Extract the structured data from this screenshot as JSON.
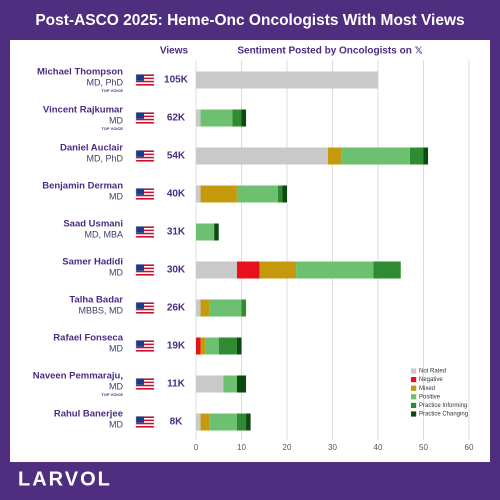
{
  "chart_data": {
    "type": "stacked-bar-horizontal",
    "title": "Post-ASCO 2025: Heme-Onc Oncologists With Most Views",
    "x_axis_title": "Sentiment Posted by Oncologists on 𝕏",
    "brand": "LARVOL",
    "categories": [
      "Michael Thompson",
      "Vincent Rajkumar",
      "Daniel Auclair",
      "Benjamin Derman",
      "Saad Usmani",
      "Samer Hadidi",
      "Talha Badar",
      "Rafael Fonseca",
      "Naveen Pemmaraju,",
      "Rahul Banerjee"
    ],
    "credentials": [
      "MD, PhD",
      "MD",
      "MD, PhD",
      "MD",
      "MD, MBA",
      "MD",
      "MBBS, MD",
      "MD",
      "MD",
      "MD"
    ],
    "badges": [
      "TOP VOICE",
      "TOP VOICE",
      null,
      null,
      null,
      null,
      null,
      null,
      "TOP VOICE",
      null
    ],
    "views": {
      "title": "Views",
      "values": [
        105000,
        62000,
        54000,
        40000,
        31000,
        30000,
        26000,
        19000,
        11000,
        8000
      ],
      "value_labels": [
        "105K",
        "62K",
        "54K",
        "40K",
        "31K",
        "30K",
        "26K",
        "19K",
        "11K",
        "8K"
      ]
    },
    "series": [
      {
        "name": "Not Rated",
        "color": "#c9c9c9",
        "values": [
          40,
          1,
          29,
          1,
          0,
          9,
          1,
          0,
          6,
          1
        ]
      },
      {
        "name": "Negative",
        "color": "#e8101a",
        "values": [
          0,
          0,
          0,
          0,
          0,
          5,
          0,
          1,
          0,
          0
        ]
      },
      {
        "name": "Mixed",
        "color": "#c49a0c",
        "values": [
          0,
          0,
          3,
          8,
          0,
          8,
          2,
          1,
          0,
          2
        ]
      },
      {
        "name": "Positive",
        "color": "#6cc070",
        "values": [
          0,
          7,
          15,
          9,
          4,
          17,
          7,
          3,
          3,
          6
        ]
      },
      {
        "name": "Practice Informing",
        "color": "#2e8b32",
        "values": [
          0,
          2,
          3,
          1,
          0,
          6,
          1,
          4,
          0,
          2
        ]
      },
      {
        "name": "Practice Changing",
        "color": "#0d4a12",
        "values": [
          0,
          1,
          1,
          1,
          1,
          0,
          0,
          1,
          2,
          1
        ]
      }
    ],
    "xlim": [
      0,
      60
    ],
    "xticks": [
      0,
      10,
      20,
      30,
      40,
      50,
      60
    ],
    "grid": true,
    "legend": "lower-right"
  }
}
